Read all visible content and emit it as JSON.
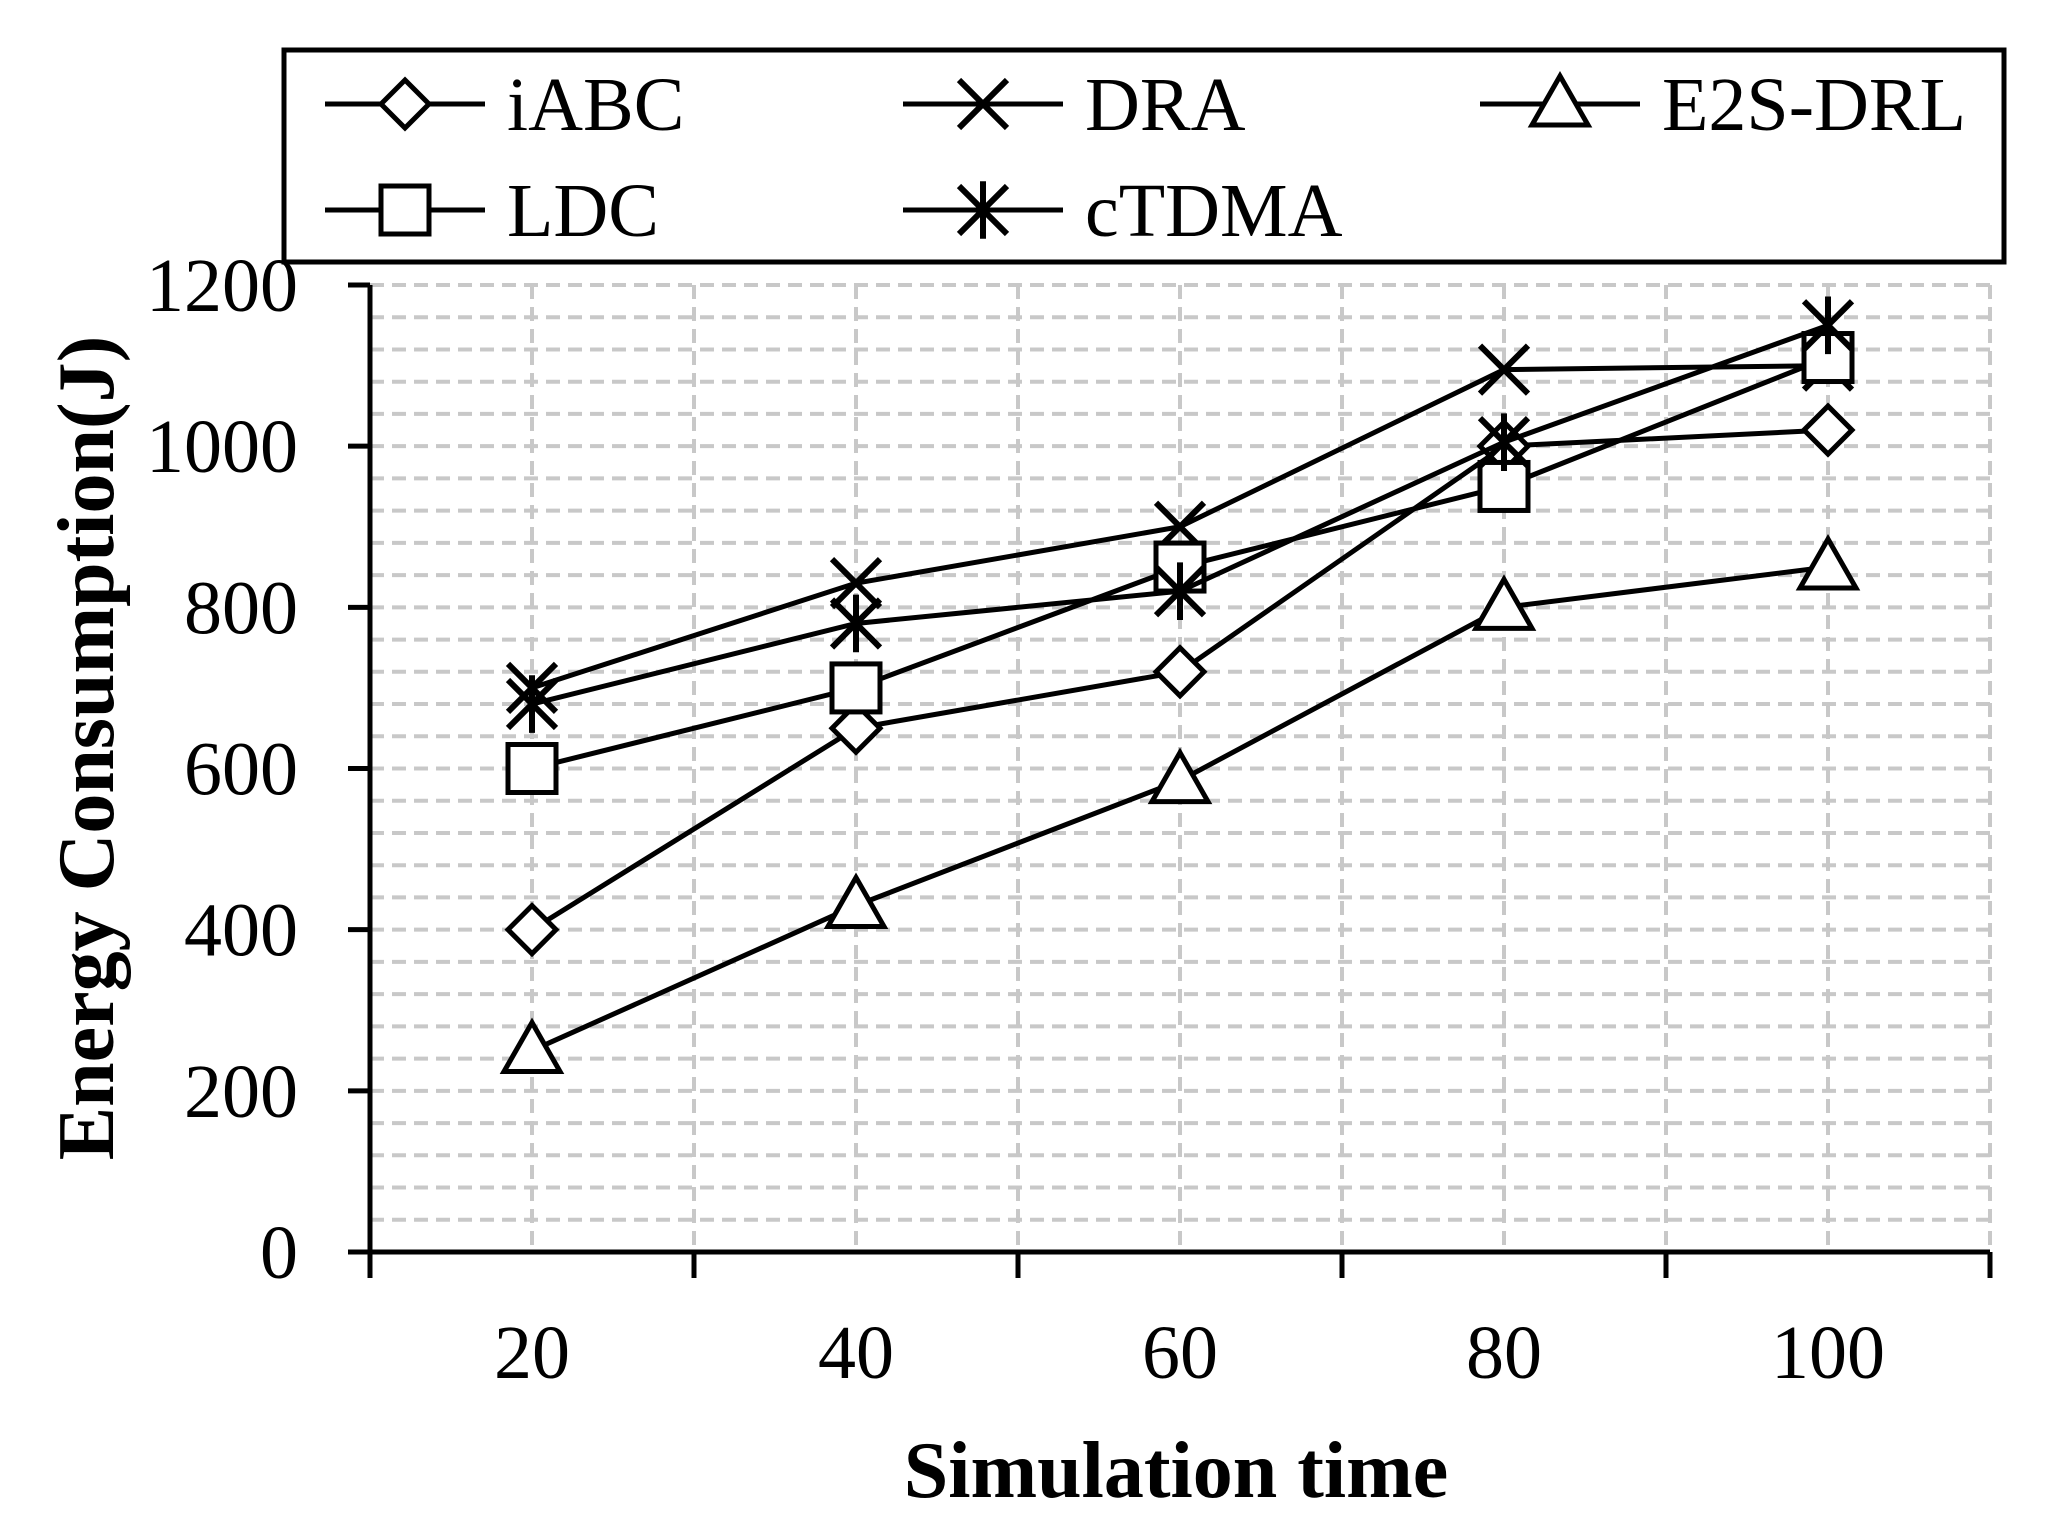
{
  "chart_data": {
    "type": "line",
    "title": "",
    "xlabel": "Simulation time",
    "ylabel": "Energy Consumption(J)",
    "x": [
      20,
      40,
      60,
      80,
      100
    ],
    "x_tick_labels": [
      "20",
      "40",
      "60",
      "80",
      "100"
    ],
    "xlim": [
      10,
      110
    ],
    "ylim": [
      0,
      1200
    ],
    "y_ticks": [
      0,
      200,
      400,
      600,
      800,
      1000,
      1200
    ],
    "y_tick_labels": [
      "0",
      "200",
      "400",
      "600",
      "800",
      "1000",
      "1200"
    ],
    "grid": true,
    "legend_position": "top",
    "series": [
      {
        "name": "iABC",
        "marker": "diamond",
        "values": [
          400,
          650,
          720,
          1000,
          1020
        ]
      },
      {
        "name": "DRA",
        "marker": "x",
        "values": [
          700,
          830,
          900,
          1095,
          1100
        ]
      },
      {
        "name": "E2S-DRL",
        "marker": "triangle",
        "values": [
          250,
          430,
          585,
          800,
          850
        ]
      },
      {
        "name": "LDC",
        "marker": "square",
        "values": [
          600,
          700,
          850,
          950,
          1110
        ]
      },
      {
        "name": "cTDMA",
        "marker": "asterisk",
        "values": [
          680,
          780,
          820,
          1005,
          1150
        ]
      }
    ],
    "colors": {
      "line": "#000000",
      "grid": "#c8c8c8",
      "background": "#ffffff"
    }
  }
}
